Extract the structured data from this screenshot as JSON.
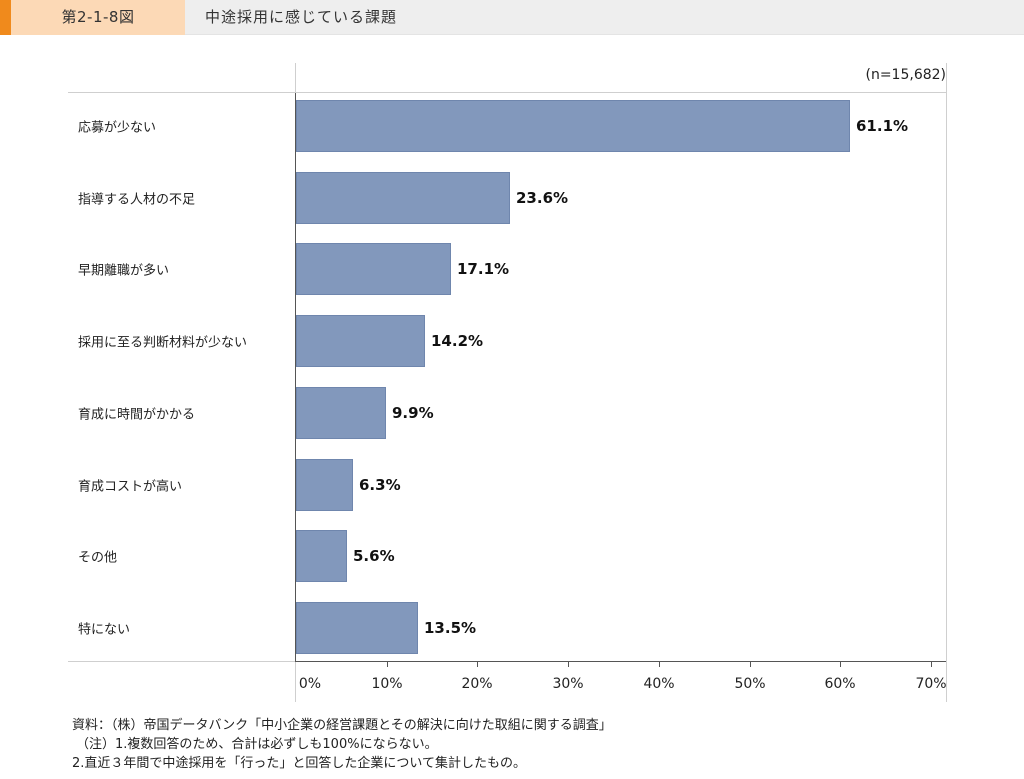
{
  "header": {
    "figure_number": "第2-1-8図",
    "title": "中途採用に感じている課題",
    "colors": {
      "stripe": "#f08a1c",
      "figure_panel": "#fcd9b6",
      "title_panel": "#eeeeee"
    }
  },
  "chart": {
    "sample_size": "(n=15,682)",
    "bar_color": "#8298bc",
    "rows": [
      {
        "label": "応募が少ない",
        "value": 61.1,
        "value_label": "61.1%"
      },
      {
        "label": "指導する人材の不足",
        "value": 23.6,
        "value_label": "23.6%"
      },
      {
        "label": "早期離職が多い",
        "value": 17.1,
        "value_label": "17.1%"
      },
      {
        "label": "採用に至る判断材料が少ない",
        "value": 14.2,
        "value_label": "14.2%"
      },
      {
        "label": "育成に時間がかかる",
        "value": 9.9,
        "value_label": "9.9%"
      },
      {
        "label": "育成コストが高い",
        "value": 6.3,
        "value_label": "6.3%"
      },
      {
        "label": "その他",
        "value": 5.6,
        "value_label": "5.6%"
      },
      {
        "label": "特にない",
        "value": 13.5,
        "value_label": "13.5%"
      }
    ],
    "x_ticks": [
      "0%",
      "10%",
      "20%",
      "30%",
      "40%",
      "50%",
      "60%",
      "70%"
    ]
  },
  "notes": {
    "source": "資料：（株）帝国データバンク「中小企業の経営課題とその解決に向けた取組に関する調査」",
    "note1": "（注）1.複数回答のため、合計は必ずしも100%にならない。",
    "note2": "2.直近３年間で中途採用を「行った」と回答した企業について集計したもの。"
  },
  "chart_data": {
    "type": "bar",
    "orientation": "horizontal",
    "title": "中途採用に感じている課題",
    "subtitle": "第2-1-8図",
    "annotation": "(n=15,682)",
    "categories": [
      "応募が少ない",
      "指導する人材の不足",
      "早期離職が多い",
      "採用に至る判断材料が少ない",
      "育成に時間がかかる",
      "育成コストが高い",
      "その他",
      "特にない"
    ],
    "values": [
      61.1,
      23.6,
      17.1,
      14.2,
      9.9,
      6.3,
      5.6,
      13.5
    ],
    "xlabel": "",
    "ylabel": "",
    "xlim": [
      0,
      70
    ],
    "x_tick_labels": [
      "0%",
      "10%",
      "20%",
      "30%",
      "40%",
      "50%",
      "60%",
      "70%"
    ],
    "value_format": "percent, 1 decimal",
    "grid": false,
    "legend": null,
    "source": "資料：（株）帝国データバンク「中小企業の経営課題とその解決に向けた取組に関する調査」"
  }
}
